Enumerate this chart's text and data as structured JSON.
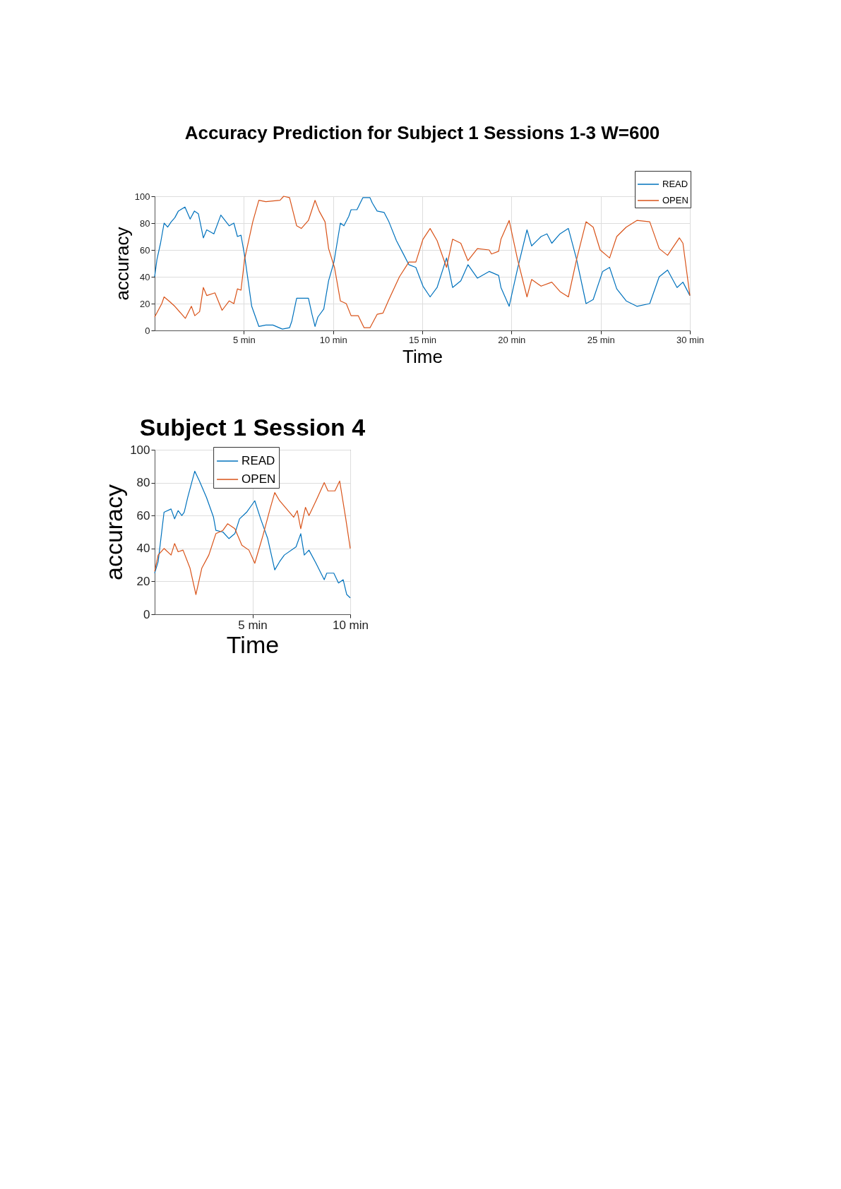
{
  "chart_data": [
    {
      "type": "line",
      "title": "Accuracy Prediction for Subject 1 Sessions 1-3 W=600",
      "xlabel": "Time",
      "ylabel": "accuracy",
      "xlim": [
        0,
        30
      ],
      "xticks": [
        {
          "value": 5,
          "label": "5 min"
        },
        {
          "value": 10,
          "label": "10 min"
        },
        {
          "value": 15,
          "label": "15 min"
        },
        {
          "value": 20,
          "label": "20 min"
        },
        {
          "value": 25,
          "label": "25 min"
        },
        {
          "value": 30,
          "label": "30 min"
        }
      ],
      "ylim": [
        0,
        100
      ],
      "yticks": [
        0,
        20,
        40,
        60,
        80,
        100
      ],
      "grid": true,
      "legend": "top right",
      "series": [
        {
          "name": "READ",
          "color": "#0072bd",
          "x": [
            0,
            0.13,
            0.33,
            0.53,
            0.73,
            0.93,
            1.13,
            1.33,
            1.7,
            1.99,
            2.23,
            2.45,
            2.73,
            2.92,
            3.32,
            3.71,
            4.18,
            4.44,
            4.64,
            4.84,
            5.04,
            5.44,
            5.84,
            6.23,
            6.63,
            7.16,
            7.56,
            7.69,
            7.96,
            8.62,
            8.82,
            8.99,
            9.15,
            9.48,
            9.75,
            10.05,
            10.41,
            10.61,
            10.88,
            11.01,
            11.34,
            11.67,
            12.07,
            12.2,
            12.47,
            12.86,
            13.13,
            13.55,
            13.98,
            14.25,
            14.64,
            15.04,
            15.44,
            15.83,
            16.36,
            16.7,
            17.16,
            17.56,
            18.09,
            18.75,
            19.28,
            19.41,
            19.87,
            20.34,
            20.87,
            21.13,
            21.66,
            21.99,
            22.26,
            22.72,
            23.19,
            23.65,
            24.18,
            24.58,
            25.11,
            25.5,
            25.9,
            26.43,
            27.03,
            27.75,
            28.28,
            28.75,
            29.28,
            29.61,
            30
          ],
          "values": [
            40,
            53,
            65,
            80,
            77,
            81,
            84,
            89,
            92,
            83,
            89,
            87,
            69,
            75,
            72,
            86,
            78,
            80,
            70,
            71,
            56,
            18,
            3,
            4,
            4,
            1,
            2,
            7,
            24,
            24,
            12,
            3,
            10,
            16,
            37,
            51,
            80,
            78,
            85,
            90,
            90,
            99,
            99,
            95,
            89,
            88,
            81,
            67,
            56,
            49,
            47,
            33,
            25,
            32,
            54,
            32,
            37,
            49,
            39,
            44,
            41,
            32,
            18,
            46,
            75,
            63,
            70,
            72,
            65,
            72,
            76,
            53,
            20,
            23,
            44,
            47,
            31,
            22,
            18,
            20,
            40,
            45,
            32,
            36,
            26
          ]
        },
        {
          "name": "OPEN",
          "color": "#d95319",
          "x": [
            0,
            0.4,
            0.53,
            0.8,
            1.13,
            1.72,
            2.06,
            2.25,
            2.52,
            2.73,
            2.92,
            3.38,
            3.78,
            4.18,
            4.44,
            4.64,
            4.84,
            5.04,
            5.5,
            5.84,
            6.23,
            7.03,
            7.23,
            7.56,
            7.96,
            8.22,
            8.62,
            8.99,
            9.22,
            9.55,
            9.75,
            10.08,
            10.41,
            10.74,
            11.01,
            11.41,
            11.74,
            12.07,
            12.47,
            12.8,
            13.13,
            13.72,
            14.25,
            14.64,
            15.04,
            15.44,
            15.83,
            16.36,
            16.7,
            17.16,
            17.56,
            18.09,
            18.75,
            18.88,
            19.28,
            19.41,
            19.87,
            20.34,
            20.87,
            21.13,
            21.66,
            22.26,
            22.72,
            23.19,
            23.65,
            24.18,
            24.58,
            24.97,
            25.5,
            25.9,
            26.43,
            27.03,
            27.75,
            28.28,
            28.75,
            29.41,
            29.61,
            30
          ],
          "values": [
            10,
            20,
            25,
            22,
            18,
            9,
            18,
            11,
            14,
            32,
            26,
            28,
            15,
            22,
            20,
            31,
            30,
            53,
            81,
            97,
            96,
            97,
            100,
            99,
            78,
            76,
            82,
            97,
            89,
            81,
            61,
            47,
            22,
            20,
            11,
            11,
            2,
            2,
            12,
            13,
            23,
            40,
            51,
            51,
            68,
            76,
            67,
            47,
            68,
            65,
            52,
            61,
            60,
            57,
            59,
            68,
            82,
            53,
            25,
            38,
            33,
            36,
            29,
            25,
            53,
            81,
            77,
            60,
            54,
            70,
            77,
            82,
            81,
            61,
            56,
            69,
            65,
            26
          ]
        }
      ]
    },
    {
      "type": "line",
      "title": "Subject 1 Session 4",
      "xlabel": "Time",
      "ylabel": "accuracy",
      "xlim": [
        0,
        10
      ],
      "xticks": [
        {
          "value": 5,
          "label": "5 min"
        },
        {
          "value": 10,
          "label": "10 min"
        }
      ],
      "ylim": [
        0,
        100
      ],
      "yticks": [
        0,
        20,
        40,
        60,
        80,
        100
      ],
      "grid": true,
      "legend": "top",
      "series": [
        {
          "name": "READ",
          "color": "#0072bd",
          "x": [
            0,
            0.18,
            0.48,
            0.84,
            1.02,
            1.2,
            1.39,
            1.51,
            1.69,
            2.05,
            2.29,
            2.65,
            3.01,
            3.13,
            3.49,
            3.8,
            4.1,
            4.34,
            4.7,
            5.12,
            5.42,
            5.78,
            6.14,
            6.39,
            6.63,
            7.23,
            7.47,
            7.65,
            7.89,
            8.25,
            8.67,
            8.8,
            9.16,
            9.4,
            9.64,
            9.82,
            10
          ],
          "values": [
            25,
            32,
            62,
            64,
            58,
            63,
            60,
            62,
            71,
            87,
            81,
            71,
            59,
            51,
            50,
            46,
            49,
            58,
            62,
            69,
            58,
            46,
            27,
            32,
            36,
            41,
            49,
            36,
            39,
            31,
            21,
            25,
            25,
            19,
            21,
            12,
            10
          ]
        },
        {
          "name": "OPEN",
          "color": "#d95319",
          "x": [
            0,
            0.18,
            0.48,
            0.84,
            1.02,
            1.2,
            1.45,
            1.81,
            2.11,
            2.41,
            2.77,
            3.13,
            3.49,
            3.73,
            4.1,
            4.46,
            4.82,
            5.12,
            5.54,
            5.9,
            6.14,
            6.39,
            6.75,
            7.11,
            7.29,
            7.47,
            7.71,
            7.89,
            8.25,
            8.67,
            8.86,
            9.22,
            9.46,
            9.76,
            10
          ],
          "values": [
            26,
            36,
            40,
            36,
            43,
            38,
            39,
            28,
            12,
            28,
            36,
            49,
            51,
            55,
            52,
            42,
            39,
            31,
            48,
            64,
            74,
            69,
            64,
            59,
            63,
            52,
            65,
            60,
            69,
            80,
            75,
            75,
            81,
            59,
            40
          ]
        }
      ]
    }
  ]
}
